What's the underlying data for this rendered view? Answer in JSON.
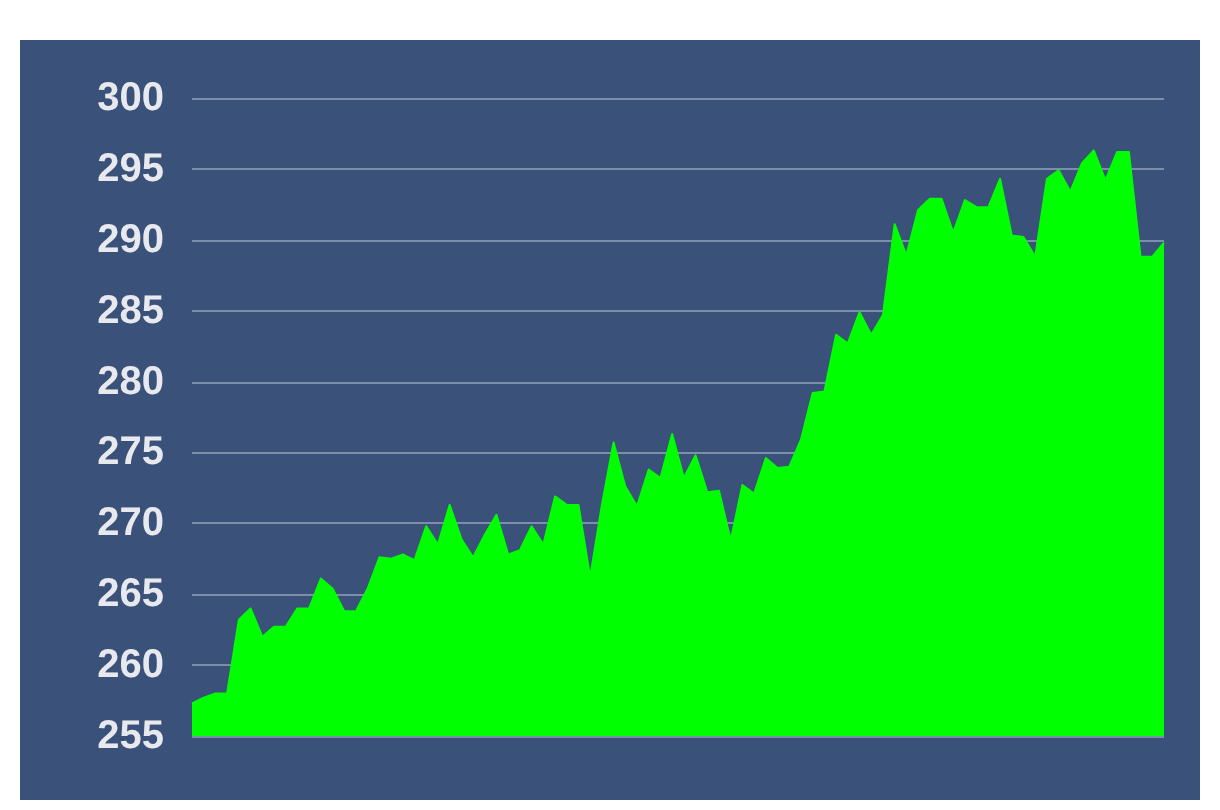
{
  "chart_data": {
    "type": "area",
    "categories": [
      null,
      null,
      null,
      null,
      null,
      null,
      null,
      null,
      null,
      null,
      null,
      null,
      null,
      null,
      null,
      null,
      null,
      null,
      null,
      null,
      null,
      null,
      null,
      null,
      null,
      null,
      null,
      null,
      null,
      null,
      null,
      null,
      null,
      null,
      null,
      null,
      null,
      null,
      null,
      null,
      null,
      null,
      null,
      null,
      null,
      null,
      null,
      null,
      null,
      null,
      null,
      null,
      null,
      null,
      null,
      null,
      null,
      null,
      null,
      null,
      null,
      null,
      null,
      null,
      null,
      null,
      null,
      null,
      null,
      null,
      null,
      null,
      null,
      null,
      null,
      null,
      null,
      null,
      null,
      null,
      null,
      null,
      null,
      null
    ],
    "series": [
      {
        "color": "#00ff00",
        "values": [
          257.3,
          257.7,
          258.0,
          258.0,
          263.2,
          264.0,
          262.0,
          262.7,
          262.7,
          264.0,
          264.0,
          266.1,
          265.4,
          263.8,
          263.8,
          265.4,
          267.6,
          267.5,
          267.8,
          267.4,
          269.8,
          268.5,
          271.3,
          268.9,
          267.6,
          269.2,
          270.6,
          267.8,
          268.1,
          269.8,
          268.5,
          271.9,
          271.3,
          271.3,
          266.2,
          271.3,
          275.7,
          272.6,
          271.2,
          273.8,
          273.2,
          276.3,
          273.2,
          274.8,
          272.2,
          272.3,
          268.8,
          272.7,
          272.1,
          274.6,
          273.9,
          274.0,
          275.9,
          279.2,
          279.3,
          283.3,
          282.7,
          284.9,
          283.3,
          284.7,
          291.1,
          288.9,
          292.1,
          292.9,
          292.9,
          290.5,
          292.8,
          292.3,
          292.3,
          294.3,
          290.3,
          290.2,
          288.8,
          294.3,
          294.9,
          293.4,
          295.4,
          296.3,
          294.2,
          296.2,
          296.2,
          288.8,
          288.8,
          289.8
        ]
      }
    ],
    "ylim": [
      255,
      300
    ],
    "yticks": [
      255,
      260,
      265,
      270,
      275,
      280,
      285,
      290,
      295,
      300
    ],
    "grid": "y",
    "tick_labels": "y"
  }
}
